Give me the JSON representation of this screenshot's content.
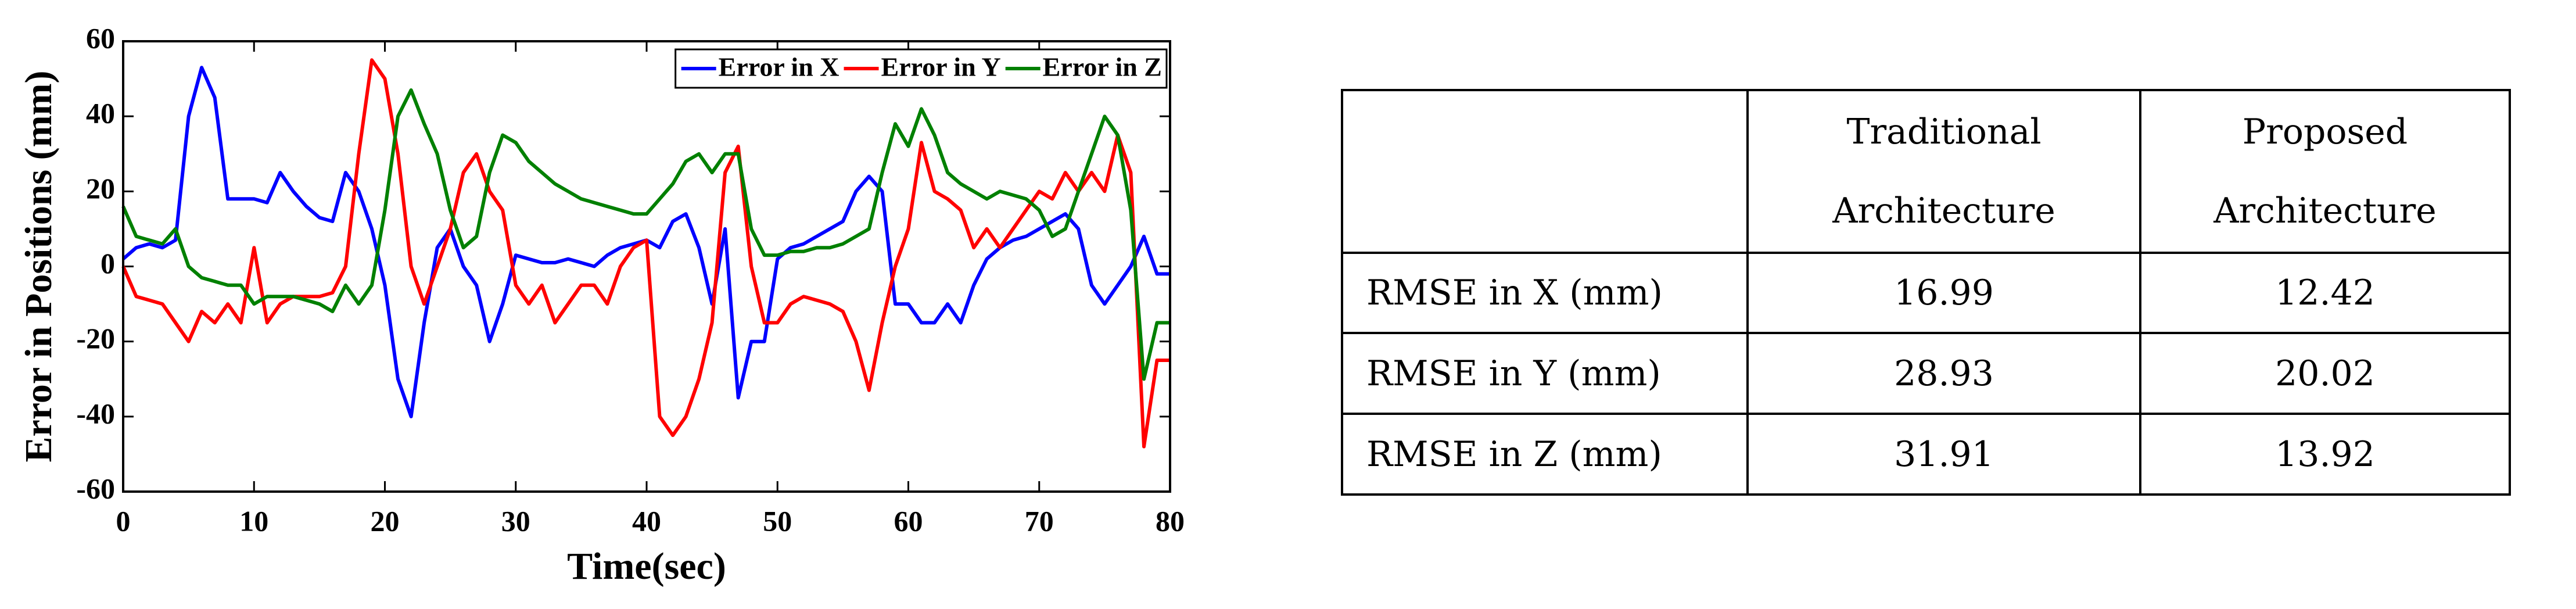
{
  "chart_data": {
    "type": "line",
    "xlabel": "Time(sec)",
    "ylabel": "Error in Positions (mm)",
    "x": [
      0,
      1,
      2,
      3,
      4,
      5,
      6,
      7,
      8,
      9,
      10,
      11,
      12,
      13,
      14,
      15,
      16,
      17,
      18,
      19,
      20,
      21,
      22,
      23,
      24,
      25,
      26,
      27,
      28,
      29,
      30,
      31,
      32,
      33,
      34,
      35,
      36,
      37,
      38,
      39,
      40,
      41,
      42,
      43,
      44,
      45,
      46,
      47,
      48,
      49,
      50,
      51,
      52,
      53,
      54,
      55,
      56,
      57,
      58,
      59,
      60,
      61,
      62,
      63,
      64,
      65,
      66,
      67,
      68,
      69,
      70,
      71,
      72,
      73,
      74,
      75,
      76,
      77,
      78,
      79,
      80
    ],
    "series": [
      {
        "name": "Error in X",
        "color": "#0000ff",
        "values": [
          2,
          5,
          6,
          5,
          7,
          40,
          53,
          45,
          18,
          18,
          18,
          17,
          25,
          20,
          16,
          13,
          12,
          25,
          20,
          10,
          -5,
          -30,
          -40,
          -15,
          5,
          10,
          0,
          -5,
          -20,
          -10,
          3,
          2,
          1,
          1,
          2,
          1,
          0,
          3,
          5,
          6,
          7,
          5,
          12,
          14,
          5,
          -10,
          10,
          -35,
          -20,
          -20,
          2,
          5,
          6,
          8,
          10,
          12,
          20,
          24,
          20,
          -10,
          -10,
          -15,
          -15,
          -10,
          -15,
          -5,
          2,
          5,
          7,
          8,
          10,
          12,
          14,
          10,
          -5,
          -10,
          -5,
          0,
          8,
          -2,
          -2
        ]
      },
      {
        "name": "Error in Y",
        "color": "#ff0000",
        "values": [
          0,
          -8,
          -9,
          -10,
          -15,
          -20,
          -12,
          -15,
          -10,
          -15,
          5,
          -15,
          -10,
          -8,
          -8,
          -8,
          -7,
          0,
          30,
          55,
          50,
          30,
          0,
          -10,
          0,
          10,
          25,
          30,
          20,
          15,
          -5,
          -10,
          -5,
          -15,
          -10,
          -5,
          -5,
          -10,
          0,
          5,
          7,
          -40,
          -45,
          -40,
          -30,
          -15,
          25,
          32,
          0,
          -15,
          -15,
          -10,
          -8,
          -9,
          -10,
          -12,
          -20,
          -33,
          -15,
          0,
          10,
          33,
          20,
          18,
          15,
          5,
          10,
          5,
          10,
          15,
          20,
          18,
          25,
          20,
          25,
          20,
          35,
          25,
          -48,
          -25,
          -25
        ]
      },
      {
        "name": "Error in Z",
        "color": "#008000",
        "values": [
          16,
          8,
          7,
          6,
          10,
          0,
          -3,
          -4,
          -5,
          -5,
          -10,
          -8,
          -8,
          -8,
          -9,
          -10,
          -12,
          -5,
          -10,
          -5,
          15,
          40,
          47,
          38,
          30,
          15,
          5,
          8,
          25,
          35,
          33,
          28,
          25,
          22,
          20,
          18,
          17,
          16,
          15,
          14,
          14,
          18,
          22,
          28,
          30,
          25,
          30,
          30,
          10,
          3,
          3,
          4,
          4,
          5,
          5,
          6,
          8,
          10,
          25,
          38,
          32,
          42,
          35,
          25,
          22,
          20,
          18,
          20,
          19,
          18,
          15,
          8,
          10,
          20,
          30,
          40,
          35,
          15,
          -30,
          -15,
          -15
        ]
      }
    ],
    "xlim": [
      0,
      80
    ],
    "xticks": [
      0,
      10,
      20,
      30,
      40,
      50,
      60,
      70,
      80
    ],
    "ylim": [
      -60,
      60
    ],
    "yticks": [
      -60,
      -40,
      -20,
      0,
      20,
      40,
      60
    ],
    "legend": "upper right"
  },
  "table": {
    "columns": [
      [
        "Traditional",
        "Architecture"
      ],
      [
        "Proposed",
        "Architecture"
      ]
    ],
    "rows": [
      [
        "RMSE in X (mm)",
        "16.99",
        "12.42"
      ],
      [
        "RMSE in Y (mm)",
        "28.93",
        "20.02"
      ],
      [
        "RMSE in Z (mm)",
        "31.91",
        "13.92"
      ]
    ]
  }
}
